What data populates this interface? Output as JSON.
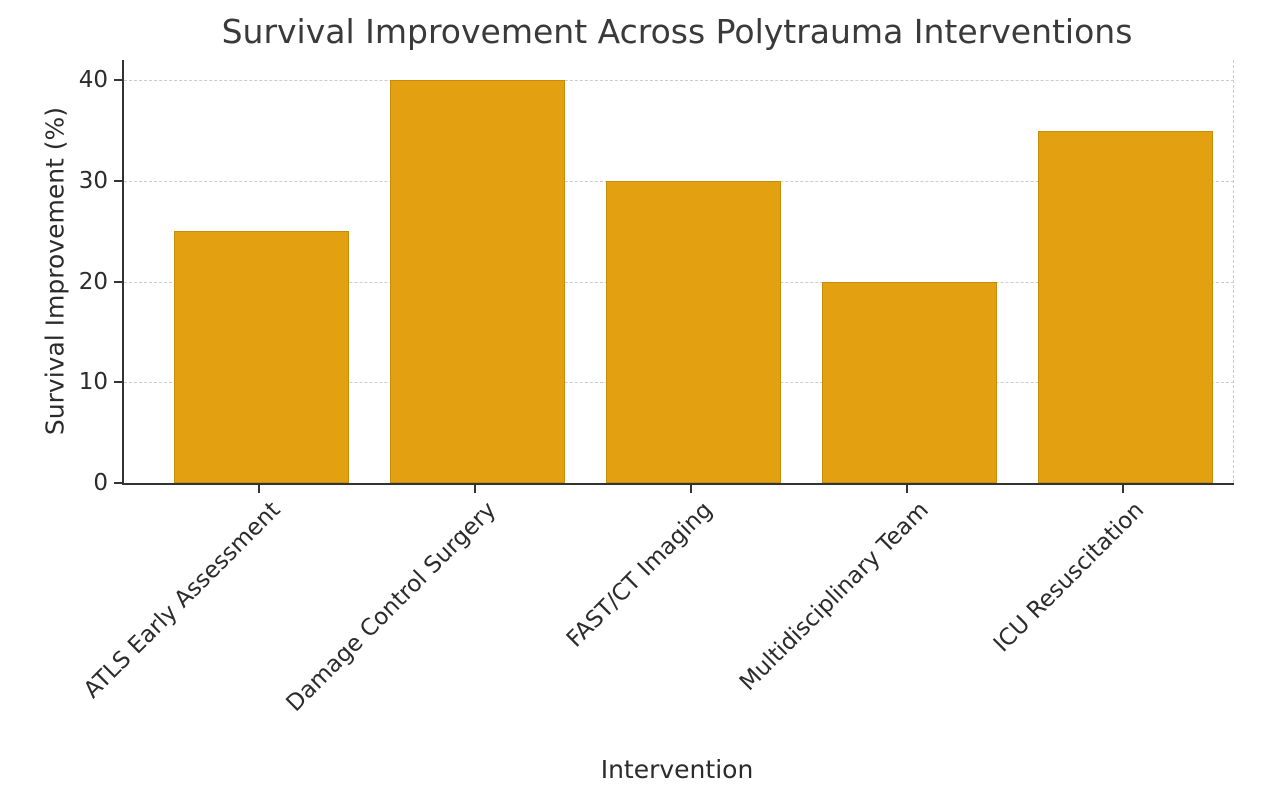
{
  "chart_data": {
    "type": "bar",
    "title": "Survival Improvement Across Polytrauma Interventions",
    "xlabel": "Intervention",
    "ylabel": "Survival Improvement (%)",
    "categories": [
      "ATLS Early Assessment",
      "Damage Control Surgery",
      "FAST/CT Imaging",
      "Multidisciplinary Team",
      "ICU Resuscitation"
    ],
    "values": [
      25,
      40,
      30,
      20,
      35
    ],
    "yticks": [
      0,
      10,
      20,
      30,
      40
    ],
    "ylim": [
      0,
      42
    ],
    "grid": "horizontal-dashed",
    "legend": "none",
    "bar_color": "#e3a112",
    "bar_edge_color": "#c78c0a",
    "grid_color": "#cccccc",
    "axis_color": "#333333",
    "text_color": "#2b2b2b",
    "background": "#ffffff"
  }
}
